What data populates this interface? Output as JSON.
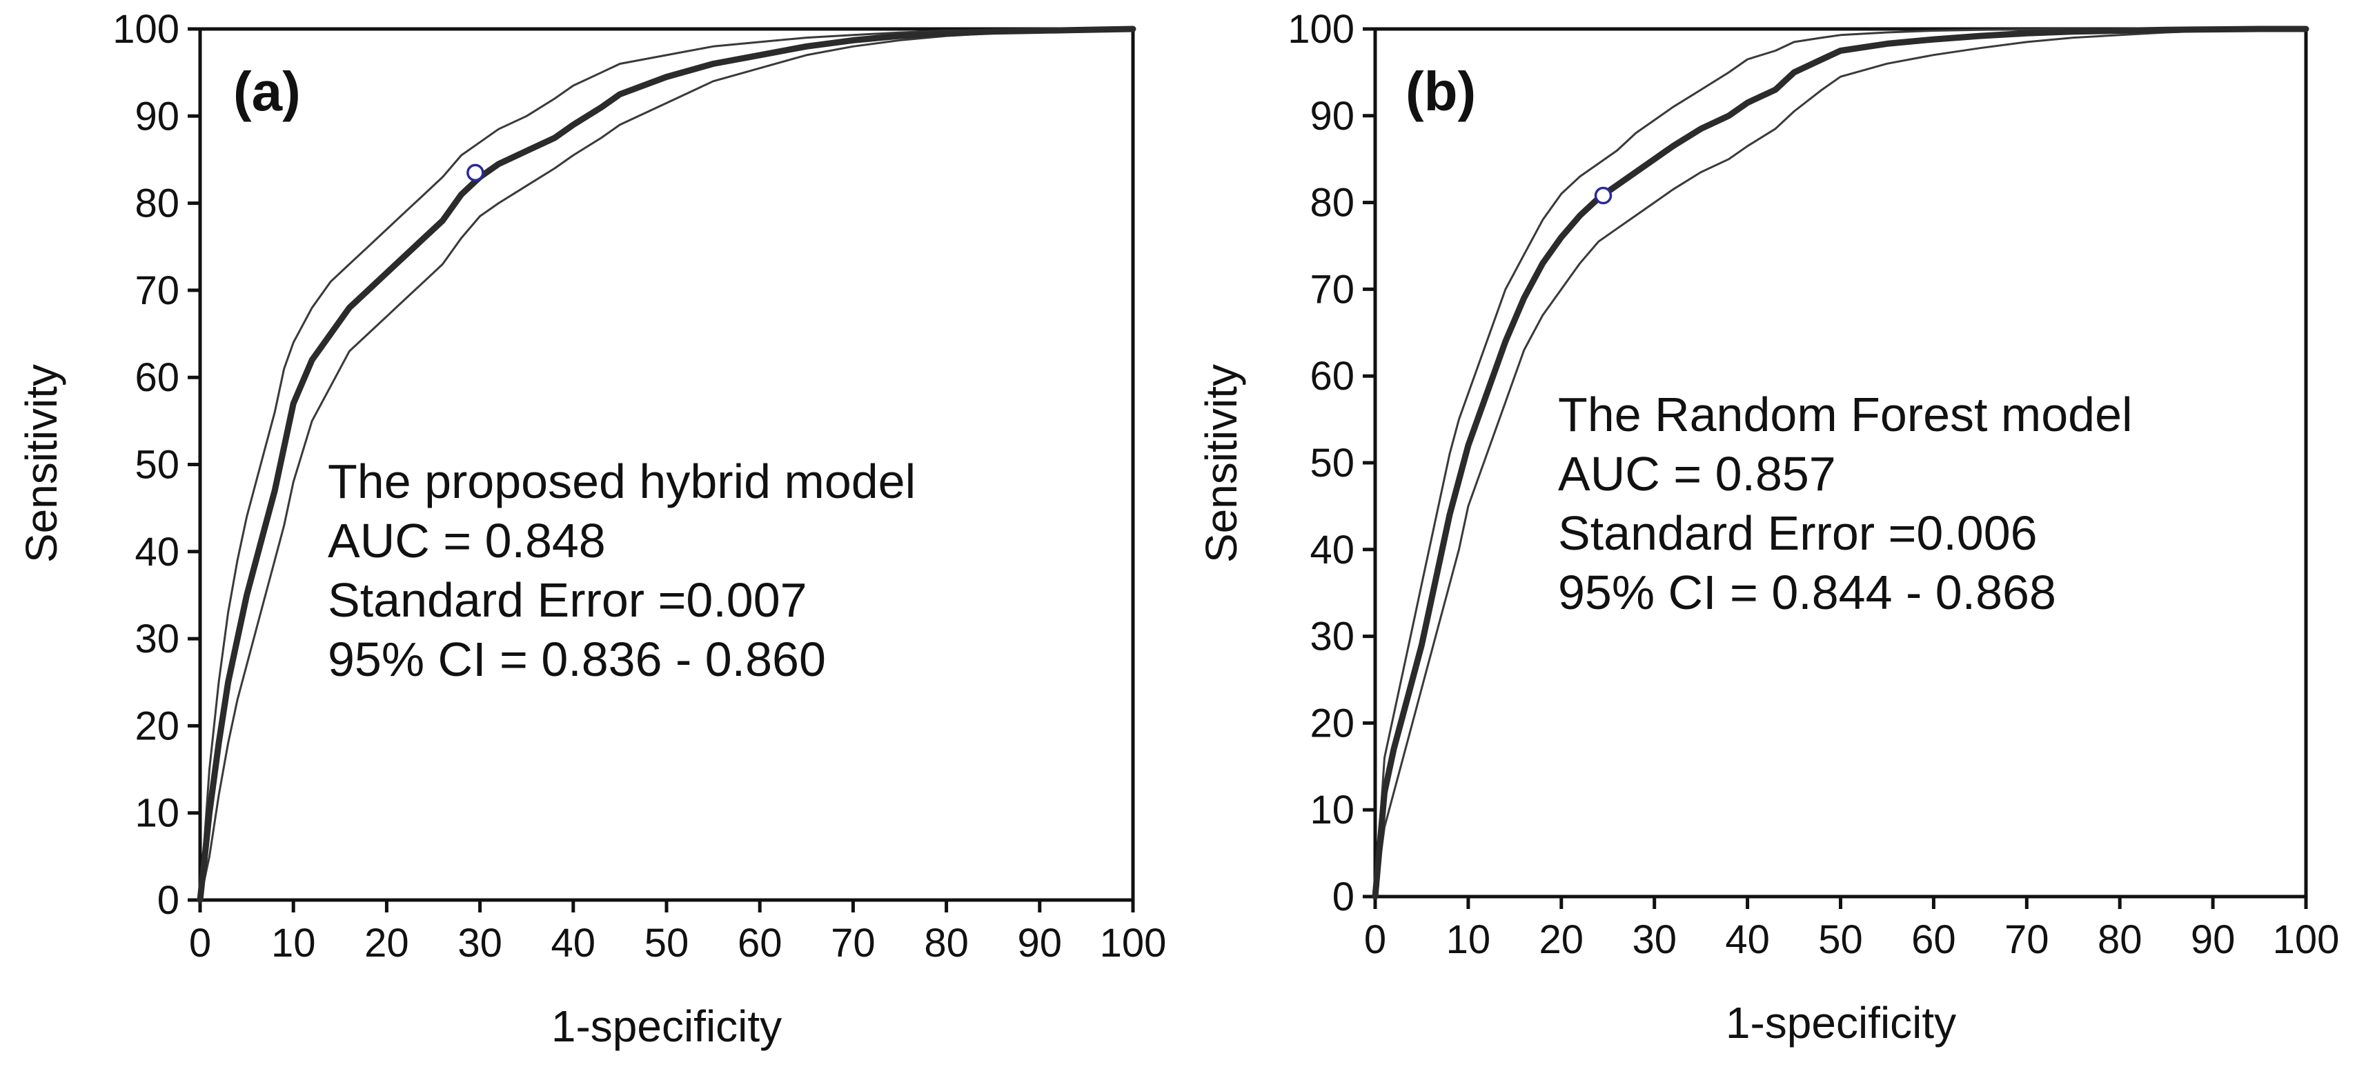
{
  "chart_data": [
    {
      "type": "line",
      "panel_label": "(a)",
      "xlabel": "1-specificity",
      "ylabel": "Sensitivity",
      "xlim": [
        0,
        100
      ],
      "ylim": [
        0,
        100
      ],
      "x_ticks": [
        "0",
        "10",
        "20",
        "30",
        "40",
        "50",
        "60",
        "70",
        "80",
        "90",
        "100"
      ],
      "y_ticks": [
        "0",
        "10",
        "20",
        "30",
        "40",
        "50",
        "60",
        "70",
        "80",
        "90",
        "100"
      ],
      "grid": false,
      "annotation": [
        "The proposed hybrid model",
        "AUC = 0.848",
        "Standard Error =0.007",
        "95% CI = 0.836 - 0.860"
      ],
      "operating_point": {
        "x": 29.5,
        "y": 83.5
      },
      "series": [
        {
          "name": "ROC curve",
          "x": [
            0,
            1,
            2,
            3,
            4,
            5,
            6,
            7,
            8,
            9,
            10,
            12,
            14,
            16,
            18,
            20,
            22,
            24,
            26,
            28,
            30,
            32,
            35,
            38,
            40,
            43,
            45,
            50,
            55,
            60,
            65,
            70,
            75,
            80,
            85,
            90,
            95,
            100
          ],
          "y": [
            0,
            10,
            18,
            25,
            30,
            35,
            39,
            43,
            47,
            52,
            57,
            62,
            65,
            68,
            70,
            72,
            74,
            76,
            78,
            81,
            83,
            84.5,
            86,
            87.5,
            89,
            91,
            92.5,
            94.5,
            96,
            97,
            98,
            98.7,
            99.2,
            99.5,
            99.7,
            99.8,
            99.9,
            100
          ]
        },
        {
          "name": "95% CI upper",
          "x": [
            0,
            1,
            2,
            3,
            4,
            5,
            6,
            7,
            8,
            9,
            10,
            12,
            14,
            16,
            18,
            20,
            22,
            24,
            26,
            28,
            30,
            32,
            35,
            38,
            40,
            43,
            45,
            50,
            55,
            60,
            65,
            70,
            75,
            80,
            85,
            90,
            95,
            100
          ],
          "y": [
            0,
            15,
            25,
            33,
            39,
            44,
            48,
            52,
            56,
            61,
            64,
            68,
            71,
            73,
            75,
            77,
            79,
            81,
            83,
            85.5,
            87,
            88.5,
            90,
            92,
            93.5,
            95,
            96,
            97,
            98,
            98.5,
            99,
            99.3,
            99.6,
            99.8,
            99.9,
            99.95,
            100,
            100
          ]
        },
        {
          "name": "95% CI lower",
          "x": [
            0,
            1,
            2,
            3,
            4,
            5,
            6,
            7,
            8,
            9,
            10,
            12,
            14,
            16,
            18,
            20,
            22,
            24,
            26,
            28,
            30,
            32,
            35,
            38,
            40,
            43,
            45,
            50,
            55,
            60,
            65,
            70,
            75,
            80,
            85,
            90,
            95,
            100
          ],
          "y": [
            0,
            5,
            12,
            18,
            23,
            27,
            31,
            35,
            39,
            43,
            48,
            55,
            59,
            63,
            65,
            67,
            69,
            71,
            73,
            76,
            78.5,
            80,
            82,
            84,
            85.5,
            87.5,
            89,
            91.5,
            94,
            95.5,
            97,
            98,
            98.7,
            99.2,
            99.5,
            99.7,
            99.85,
            100
          ]
        }
      ]
    },
    {
      "type": "line",
      "panel_label": "(b)",
      "xlabel": "1-specificity",
      "ylabel": "Sensitivity",
      "xlim": [
        0,
        100
      ],
      "ylim": [
        0,
        100
      ],
      "x_ticks": [
        "0",
        "10",
        "20",
        "30",
        "40",
        "50",
        "60",
        "70",
        "80",
        "90",
        "100"
      ],
      "y_ticks": [
        "0",
        "10",
        "20",
        "30",
        "40",
        "50",
        "60",
        "70",
        "80",
        "90",
        "100"
      ],
      "grid": false,
      "annotation": [
        "The Random Forest model",
        "AUC = 0.857",
        "Standard Error =0.006",
        "95% CI = 0.844 - 0.868"
      ],
      "operating_point": {
        "x": 24.5,
        "y": 80.8
      },
      "series": [
        {
          "name": "ROC curve",
          "x": [
            0,
            1,
            2,
            3,
            4,
            5,
            6,
            7,
            8,
            9,
            10,
            12,
            14,
            16,
            18,
            20,
            22,
            24,
            26,
            28,
            30,
            32,
            35,
            38,
            40,
            43,
            45,
            48,
            50,
            55,
            60,
            65,
            70,
            75,
            80,
            85,
            90,
            95,
            100
          ],
          "y": [
            0,
            12,
            17,
            21,
            25,
            29,
            34,
            39,
            44,
            48,
            52,
            58,
            64,
            69,
            73,
            76,
            78.5,
            80.5,
            82,
            83.5,
            85,
            86.5,
            88.5,
            90,
            91.5,
            93,
            95,
            96.5,
            97.5,
            98.3,
            98.8,
            99.2,
            99.5,
            99.7,
            99.8,
            99.9,
            99.95,
            100,
            100
          ]
        },
        {
          "name": "95% CI upper",
          "x": [
            0,
            1,
            2,
            3,
            4,
            5,
            6,
            7,
            8,
            9,
            10,
            12,
            14,
            16,
            18,
            20,
            22,
            24,
            26,
            28,
            30,
            32,
            35,
            38,
            40,
            43,
            45,
            48,
            50,
            55,
            60,
            65,
            70,
            75,
            80,
            85,
            90,
            95,
            100
          ],
          "y": [
            0,
            16,
            21,
            26,
            31,
            36,
            41,
            46,
            51,
            55,
            58,
            64,
            70,
            74,
            78,
            81,
            83,
            84.5,
            86,
            88,
            89.5,
            91,
            93,
            95,
            96.5,
            97.5,
            98.5,
            99,
            99.3,
            99.6,
            99.8,
            99.9,
            99.95,
            100,
            100,
            100,
            100,
            100,
            100
          ]
        },
        {
          "name": "95% CI lower",
          "x": [
            0,
            1,
            2,
            3,
            4,
            5,
            6,
            7,
            8,
            9,
            10,
            12,
            14,
            16,
            18,
            20,
            22,
            24,
            26,
            28,
            30,
            32,
            35,
            38,
            40,
            43,
            45,
            48,
            50,
            55,
            60,
            65,
            70,
            75,
            80,
            85,
            90,
            95,
            100
          ],
          "y": [
            0,
            8,
            12,
            16,
            20,
            24,
            28,
            32,
            36,
            40,
            45,
            51,
            57,
            63,
            67,
            70,
            73,
            75.5,
            77,
            78.5,
            80,
            81.5,
            83.5,
            85,
            86.5,
            88.5,
            90.5,
            93,
            94.5,
            96,
            97,
            97.8,
            98.5,
            99,
            99.3,
            99.6,
            99.8,
            99.9,
            100
          ]
        }
      ]
    }
  ]
}
